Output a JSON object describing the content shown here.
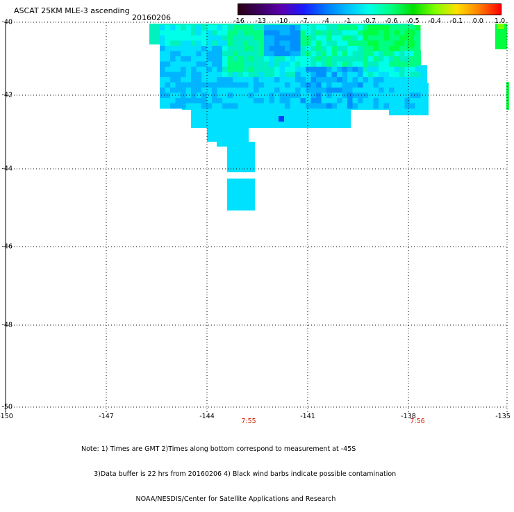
{
  "title": "ASCAT 25KM MLE-3 ascending",
  "date": "20160206",
  "colorbar": {
    "labels": [
      "-16",
      "-13",
      "-10",
      "-7",
      "-4",
      "-1",
      "-0.7",
      "-0.6",
      "-0.5",
      "-0.4",
      "-0.1",
      "0.0",
      "1.0"
    ],
    "colors": [
      "#2a0012",
      "#3d0060",
      "#5a00b0",
      "#1a1aff",
      "#0078ff",
      "#00c0ff",
      "#00ffe8",
      "#00ff80",
      "#00e000",
      "#80ff00",
      "#ffe000",
      "#ff8000",
      "#ff0000"
    ]
  },
  "lat_labels": [
    "-40",
    "-42",
    "-44",
    "-46",
    "-48",
    "-50"
  ],
  "lon_labels": [
    "-150",
    "-147",
    "-144",
    "-141",
    "-138",
    "-135"
  ],
  "time_labels": [
    "7:55",
    "7:56"
  ],
  "note_lines": [
    "Note: 1) Times are GMT 2)Times along bottom correspond to measurement at -45S",
    "      3)Data buffer is 22 hrs from 20160206 4) Black wind barbs indicate possible contamination",
    "                          NOAA/NESDIS/Center for Satellite Applications and Research"
  ],
  "palette": {
    "cyan": "#00e0ff",
    "lightcyan": "#00ffe8",
    "teal": "#00f0c0",
    "green": "#00ff80",
    "brightgreen": "#00ff40",
    "blue": "#00b4ff",
    "deepblue": "#0090ff",
    "timecolor": "#d02000"
  }
}
